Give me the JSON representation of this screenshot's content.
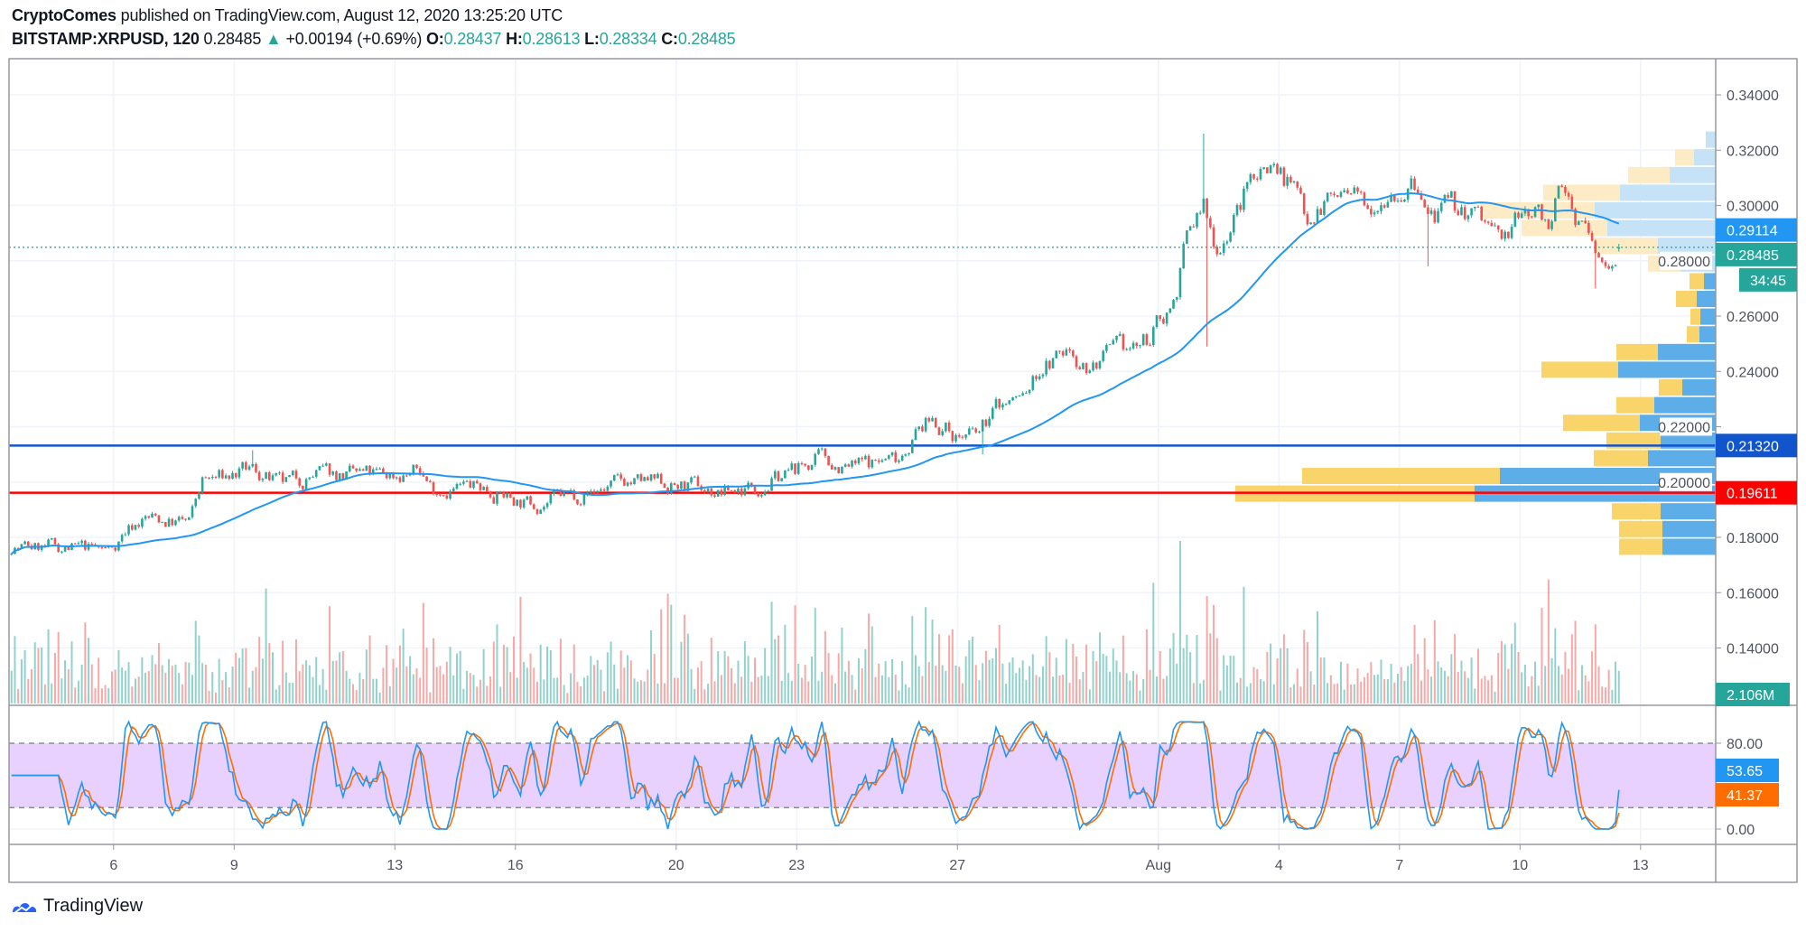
{
  "header": {
    "author": "CryptoComes",
    "published": " published on TradingView.com, August 12, 2020 13:25:20 UTC",
    "symbol": "BITSTAMP:XRPUSD, 120",
    "last": "0.28485",
    "change": "+0.00194 (+0.69%)",
    "o_label": "O:",
    "o": "0.28437",
    "h_label": "H:",
    "h": "0.28613",
    "l_label": "L:",
    "l": "0.28334",
    "c_label": "C:",
    "c": "0.28485"
  },
  "price_axis": {
    "ticks": [
      "0.34000",
      "0.32000",
      "0.30000",
      "0.28000",
      "0.26000",
      "0.24000",
      "0.22000",
      "0.20000",
      "0.18000",
      "0.16000",
      "0.14000"
    ]
  },
  "stoch_axis": {
    "ticks": [
      "80.00",
      "0.00"
    ],
    "upper_band": 80,
    "lower_band": 20
  },
  "labels": {
    "sma": "0.29114",
    "last_price": "0.28485",
    "countdown": "34:45",
    "blue_line": "0.21320",
    "red_line": "0.19611",
    "volume": "2.106M",
    "stoch_k": "53.65",
    "stoch_d": "41.37"
  },
  "time_axis": [
    {
      "label": "6",
      "day": 6
    },
    {
      "label": "9",
      "day": 9
    },
    {
      "label": "13",
      "day": 13
    },
    {
      "label": "16",
      "day": 16
    },
    {
      "label": "20",
      "day": 20
    },
    {
      "label": "23",
      "day": 23
    },
    {
      "label": "27",
      "day": 27
    },
    {
      "label": "Aug",
      "day": 32
    },
    {
      "label": "4",
      "day": 35
    },
    {
      "label": "7",
      "day": 38
    },
    {
      "label": "10",
      "day": 41
    },
    {
      "label": "13",
      "day": 44
    }
  ],
  "colors": {
    "up": "#26a69a",
    "down": "#ef5350",
    "sma": "#2196f3",
    "blue_line": "#1155cc",
    "red_line": "#ff0000",
    "stoch_k": "#2196f3",
    "stoch_d": "#ff6d00",
    "stoch_band": "#e6ccff",
    "vp_up": "#5dade8",
    "vp_down": "#f9d46b",
    "vp_up_faded": "#c6e2f7",
    "vp_down_faded": "#fcebc4"
  },
  "logo": {
    "text": "TradingView"
  },
  "chart_data": {
    "type": "candlestick",
    "interval_minutes": 120,
    "bars_per_day": 12,
    "start_day": 3.46,
    "end_day": 43.43,
    "seed": 7,
    "day_axis_note": "July day numbers; Aug 1 = 32",
    "close_path": [
      [
        3.46,
        0.1767
      ],
      [
        5.9,
        0.1755
      ],
      [
        6.33,
        0.183
      ],
      [
        6.76,
        0.187
      ],
      [
        7.9,
        0.185
      ],
      [
        8.19,
        0.2
      ],
      [
        9.48,
        0.204
      ],
      [
        10.19,
        0.198
      ],
      [
        11.05,
        0.203
      ],
      [
        12.63,
        0.202
      ],
      [
        13.63,
        0.204
      ],
      [
        13.92,
        0.198
      ],
      [
        15.21,
        0.198
      ],
      [
        16.35,
        0.192
      ],
      [
        17.5,
        0.1955
      ],
      [
        18.79,
        0.2
      ],
      [
        20.37,
        0.198
      ],
      [
        21.08,
        0.196
      ],
      [
        22.08,
        0.199
      ],
      [
        22.94,
        0.204
      ],
      [
        23.52,
        0.208
      ],
      [
        24.38,
        0.205
      ],
      [
        25.52,
        0.209
      ],
      [
        25.95,
        0.218
      ],
      [
        26.38,
        0.2227
      ],
      [
        26.96,
        0.217
      ],
      [
        27.53,
        0.2164
      ],
      [
        27.96,
        0.227
      ],
      [
        28.67,
        0.231
      ],
      [
        29.1,
        0.2415
      ],
      [
        29.82,
        0.2477
      ],
      [
        30.25,
        0.2415
      ],
      [
        30.97,
        0.2456
      ],
      [
        31.68,
        0.2498
      ],
      [
        31.97,
        0.256
      ],
      [
        32.4,
        0.2665
      ],
      [
        32.69,
        0.287
      ],
      [
        33.12,
        0.3
      ],
      [
        33.26,
        0.291
      ],
      [
        33.49,
        0.285
      ],
      [
        33.98,
        0.298
      ],
      [
        34.41,
        0.3124
      ],
      [
        34.84,
        0.3166
      ],
      [
        35.27,
        0.308
      ],
      [
        35.7,
        0.298
      ],
      [
        36.41,
        0.304
      ],
      [
        36.99,
        0.3
      ],
      [
        37.7,
        0.308
      ],
      [
        38.42,
        0.306
      ],
      [
        38.7,
        0.2957
      ],
      [
        39.56,
        0.2978
      ],
      [
        40.14,
        0.2937
      ],
      [
        40.57,
        0.287
      ],
      [
        41.14,
        0.298
      ],
      [
        41.71,
        0.2957
      ],
      [
        42.0,
        0.304
      ],
      [
        42.57,
        0.2937
      ],
      [
        42.86,
        0.283
      ],
      [
        43.14,
        0.277
      ],
      [
        43.43,
        0.2849
      ]
    ],
    "wicks": [
      {
        "day": 33.12,
        "high": 0.326
      },
      {
        "day": 33.22,
        "low": 0.249
      },
      {
        "day": 38.7,
        "low": 0.278
      },
      {
        "day": 42.86,
        "low": 0.27
      },
      {
        "day": 27.6,
        "low": 0.21
      },
      {
        "day": 9.45,
        "high": 0.2115
      }
    ],
    "sma_period": 50,
    "stoch_rsi": {
      "rsi": 14,
      "stoch": 14,
      "k": 3,
      "d": 3
    },
    "horizontal_lines": [
      {
        "name": "resistance-support",
        "price": 0.2132,
        "color_key": "blue_line"
      },
      {
        "name": "support",
        "price": 0.19611,
        "color_key": "red_line"
      }
    ],
    "volume_profile": {
      "top_price": 0.3238,
      "row_size": 0.0064,
      "rows": [
        {
          "up": 11,
          "down": 0,
          "faded": true
        },
        {
          "up": 24,
          "down": 21,
          "faded": true
        },
        {
          "up": 51,
          "down": 46,
          "faded": true
        },
        {
          "up": 106,
          "down": 85,
          "faded": true
        },
        {
          "up": 134,
          "down": 127,
          "faded": true
        },
        {
          "up": 120,
          "down": 95,
          "faded": true
        },
        {
          "up": 64,
          "down": 71,
          "faded": true
        },
        {
          "up": 39,
          "down": 36,
          "faded": true
        },
        {
          "up": 13,
          "down": 16,
          "faded": false
        },
        {
          "up": 21,
          "down": 23,
          "faded": false
        },
        {
          "up": 17,
          "down": 11,
          "faded": false
        },
        {
          "up": 18,
          "down": 14,
          "faded": false
        },
        {
          "up": 64,
          "down": 46,
          "faded": false
        },
        {
          "up": 108,
          "down": 85,
          "faded": false
        },
        {
          "up": 37,
          "down": 26,
          "faded": false
        },
        {
          "up": 68,
          "down": 42,
          "faded": false
        },
        {
          "up": 84,
          "down": 85,
          "faded": false
        },
        {
          "up": 61,
          "down": 60,
          "faded": false
        },
        {
          "up": 75,
          "down": 60,
          "faded": false
        },
        {
          "up": 239,
          "down": 219,
          "faded": false
        },
        {
          "up": 267,
          "down": 265,
          "faded": false
        },
        {
          "up": 61,
          "down": 54,
          "faded": false
        },
        {
          "up": 59,
          "down": 48,
          "faded": false
        },
        {
          "up": 59,
          "down": 48,
          "faded": false
        }
      ]
    }
  }
}
